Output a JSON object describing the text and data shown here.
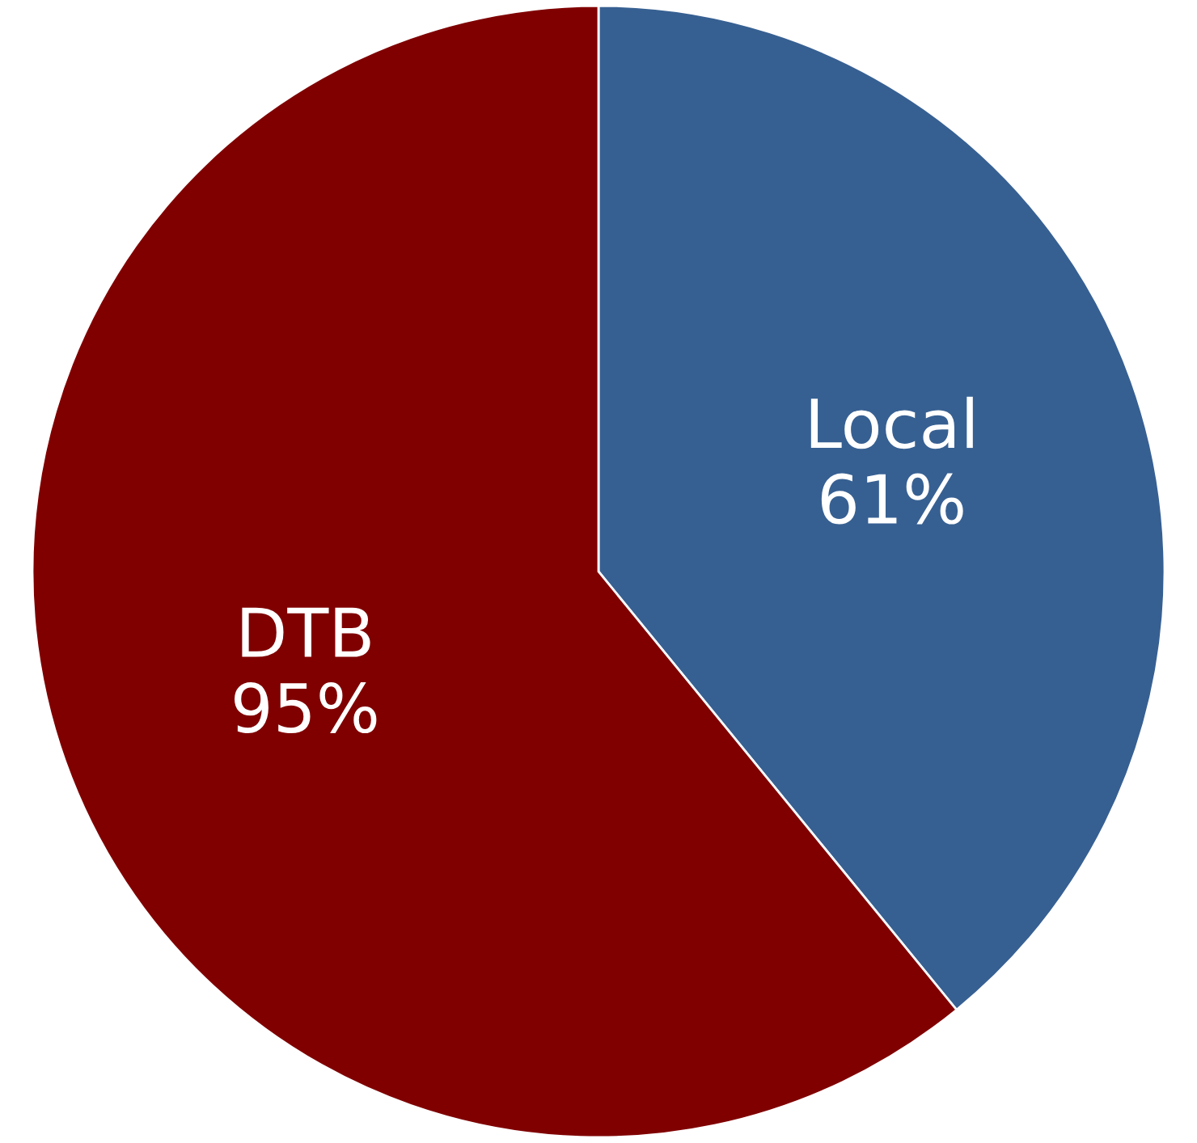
{
  "chart_data": {
    "type": "pie",
    "categories": [
      "Local",
      "DTB"
    ],
    "values": [
      61,
      95
    ],
    "value_labels": [
      "61%",
      "95%"
    ],
    "colors": [
      "#376092",
      "#800000"
    ],
    "legend": false
  }
}
